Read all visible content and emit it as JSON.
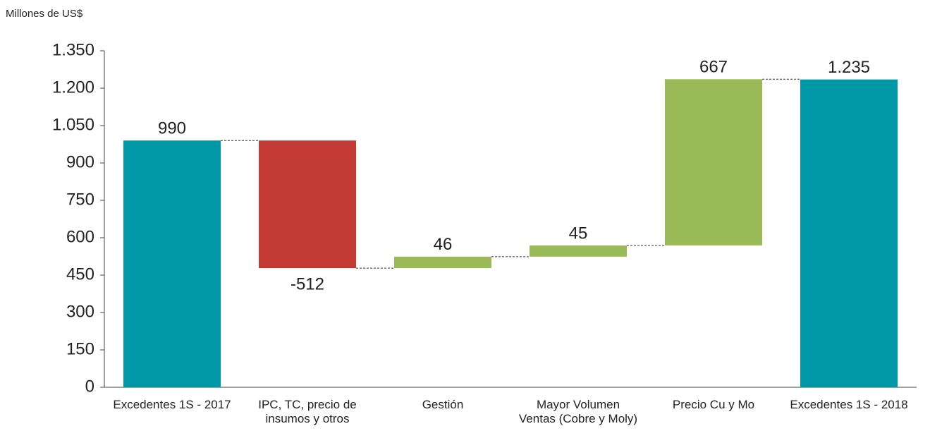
{
  "chart_data": {
    "type": "waterfall",
    "y_axis_label": "Millones de US$",
    "categories": [
      "Excedentes 1S - 2017",
      "IPC, TC, precio de insumos y otros",
      "Gestión",
      "Mayor Volumen Ventas (Cobre y Moly)",
      "Precio Cu y Mo",
      "Excedentes 1S - 2018"
    ],
    "values": [
      990,
      -512,
      46,
      45,
      667,
      1235
    ],
    "value_labels": [
      "990",
      "-512",
      "46",
      "45",
      "667",
      "1.235"
    ],
    "colors": [
      "#0097a7",
      "#c23a33",
      "#9bbb59",
      "#9bbb59",
      "#9bbb59",
      "#0097a7"
    ],
    "ylim": [
      0,
      1350
    ],
    "yticks": [
      0,
      150,
      300,
      450,
      600,
      750,
      900,
      {
        "value": 1050,
        "label": "1.050"
      },
      {
        "value": 1200,
        "label": "1.200"
      },
      {
        "value": 1350,
        "label": "1.350"
      }
    ]
  }
}
